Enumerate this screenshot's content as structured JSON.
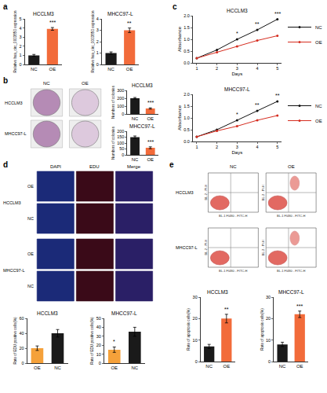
{
  "chart_data": [
    {
      "type": "bar",
      "title": "HCCLM3",
      "categories": [
        "NC",
        "OE"
      ],
      "values": [
        1.0,
        3.9
      ],
      "errors": [
        0.1,
        0.15
      ],
      "colors": [
        "#1a1a1a",
        "#f26b3a"
      ],
      "y_label": "Relative hsa_circ_0003850 expression",
      "ylim": [
        0,
        5
      ],
      "yticks": [
        0,
        1,
        2,
        3,
        4,
        5
      ],
      "grid": false,
      "annotations": [
        {
          "category": "OE",
          "text": "***"
        }
      ]
    },
    {
      "type": "bar",
      "title": "MHCC97-L",
      "categories": [
        "NC",
        "OE"
      ],
      "values": [
        1.0,
        3.0
      ],
      "errors": [
        0.1,
        0.2
      ],
      "colors": [
        "#1a1a1a",
        "#f26b3a"
      ],
      "y_label": "Relative hsa_circ_0003850 expression",
      "ylim": [
        0,
        4
      ],
      "yticks": [
        0,
        1,
        2,
        3,
        4
      ],
      "grid": false,
      "annotations": [
        {
          "category": "OE",
          "text": "**"
        }
      ]
    },
    {
      "type": "bar",
      "title": "HCCLM3",
      "categories": [
        "NC",
        "OE"
      ],
      "values": [
        200,
        70
      ],
      "errors": [
        10,
        8
      ],
      "colors": [
        "#1a1a1a",
        "#f26b3a"
      ],
      "y_label": "Numbers of colonies",
      "ylim": [
        0,
        300
      ],
      "yticks": [
        0,
        100,
        200,
        300
      ],
      "grid": false,
      "annotations": [
        {
          "category": "OE",
          "text": "***"
        }
      ]
    },
    {
      "type": "bar",
      "title": "MHCC97-L",
      "categories": [
        "NC",
        "OE"
      ],
      "values": [
        150,
        60
      ],
      "errors": [
        10,
        8
      ],
      "colors": [
        "#1a1a1a",
        "#f26b3a"
      ],
      "y_label": "Numbers of colonies",
      "ylim": [
        0,
        200
      ],
      "yticks": [
        0,
        50,
        100,
        150,
        200
      ],
      "grid": false,
      "annotations": [
        {
          "category": "OE",
          "text": "***"
        }
      ]
    },
    {
      "type": "line",
      "title": "HCCLM3",
      "x": [
        1,
        2,
        3,
        4,
        5
      ],
      "x_label": "Days",
      "y_label": "Absorbance",
      "series": [
        {
          "name": "NC",
          "color": "#111111",
          "values": [
            0.2,
            0.55,
            1.0,
            1.4,
            1.85
          ]
        },
        {
          "name": "OE",
          "color": "#d62d20",
          "values": [
            0.2,
            0.45,
            0.7,
            0.95,
            1.15
          ]
        }
      ],
      "xlim": [
        0.8,
        5.2
      ],
      "xticks": [
        1,
        2,
        3,
        4,
        5
      ],
      "ylim": [
        0,
        2
      ],
      "yticks": [
        {
          "value": 0,
          "label": "0.0"
        },
        0.5,
        {
          "value": 1,
          "label": "1.0"
        },
        1.5,
        {
          "value": 2,
          "label": "2.0"
        }
      ],
      "grid": false,
      "legend": "right",
      "marker": "circle",
      "line_style": "solid",
      "annotations": [
        {
          "x": 3,
          "text": "*"
        },
        {
          "x": 4,
          "text": "**"
        },
        {
          "x": 5,
          "text": "***"
        }
      ]
    },
    {
      "type": "line",
      "title": "MHCC97-L",
      "x": [
        1,
        2,
        3,
        4,
        5
      ],
      "x_label": "Days",
      "y_label": "Absorbance",
      "series": [
        {
          "name": "NC",
          "color": "#111111",
          "values": [
            0.2,
            0.5,
            0.9,
            1.3,
            1.7
          ]
        },
        {
          "name": "OE",
          "color": "#d62d20",
          "values": [
            0.2,
            0.45,
            0.65,
            0.9,
            1.1
          ]
        }
      ],
      "xlim": [
        0.8,
        5.2
      ],
      "xticks": [
        1,
        2,
        3,
        4,
        5
      ],
      "ylim": [
        0,
        2
      ],
      "yticks": [
        {
          "value": 0,
          "label": "0.0"
        },
        0.5,
        {
          "value": 1,
          "label": "1.0"
        },
        1.5,
        {
          "value": 2,
          "label": "2.0"
        }
      ],
      "grid": false,
      "legend": "right",
      "marker": "circle",
      "line_style": "solid",
      "annotations": [
        {
          "x": 3,
          "text": "*"
        },
        {
          "x": 4,
          "text": "**"
        },
        {
          "x": 5,
          "text": "**"
        }
      ]
    },
    {
      "type": "bar",
      "title": "HCCLM3",
      "categories": [
        "OE",
        "NC"
      ],
      "values": [
        20,
        40
      ],
      "errors": [
        3,
        5
      ],
      "colors": [
        "#f5a13a",
        "#1a1a1a"
      ],
      "y_label": "Rate of EDU positive cells(%)",
      "ylim": [
        0,
        60
      ],
      "yticks": [
        0,
        20,
        40,
        60
      ],
      "grid": false,
      "annotations": []
    },
    {
      "type": "bar",
      "title": "MHCC97-L",
      "categories": [
        "OE",
        "NC"
      ],
      "values": [
        15,
        35
      ],
      "errors": [
        3,
        5
      ],
      "colors": [
        "#f5a13a",
        "#1a1a1a"
      ],
      "y_label": "Rate of EDU positive cells(%)",
      "ylim": [
        0,
        50
      ],
      "yticks": [
        0,
        10,
        20,
        30,
        40,
        50
      ],
      "grid": false,
      "annotations": [
        {
          "category": "OE",
          "text": "*"
        }
      ]
    },
    {
      "type": "bar",
      "title": "HCCLM3",
      "categories": [
        "NC",
        "OE"
      ],
      "values": [
        7,
        20
      ],
      "errors": [
        1,
        2
      ],
      "colors": [
        "#1a1a1a",
        "#f26b3a"
      ],
      "y_label": "Rate of apoptosis cells(%)",
      "ylim": [
        0,
        30
      ],
      "yticks": [
        0,
        10,
        20,
        30
      ],
      "grid": false,
      "annotations": [
        {
          "category": "OE",
          "text": "**"
        }
      ]
    },
    {
      "type": "bar",
      "title": "MHCC97-L",
      "categories": [
        "NC",
        "OE"
      ],
      "values": [
        8,
        22
      ],
      "errors": [
        1,
        1.5
      ],
      "colors": [
        "#1a1a1a",
        "#f26b3a"
      ],
      "y_label": "Rate of apoptosis cells(%)",
      "ylim": [
        0,
        30
      ],
      "yticks": [
        0,
        10,
        20,
        30
      ],
      "grid": false,
      "annotations": [
        {
          "category": "OE",
          "text": "***"
        }
      ]
    }
  ],
  "figure": {
    "panel_labels": [
      "a",
      "b",
      "c",
      "d",
      "e"
    ],
    "colony_images": {
      "columns": [
        "NC",
        "OE"
      ],
      "rows": [
        "HCCLM3",
        "MHCC97-L"
      ]
    },
    "edu_images": {
      "columns": [
        "DAPI",
        "EDU",
        "Merge"
      ],
      "groups": [
        {
          "name": "HCCLM3",
          "rows": [
            "OE",
            "NC"
          ]
        },
        {
          "name": "MHCC97-L",
          "rows": [
            "OE",
            "NC"
          ]
        }
      ]
    },
    "flow_plots": {
      "columns": [
        "NC",
        "OE"
      ],
      "rows": [
        "HCCLM3",
        "MHCC97-L"
      ],
      "x_label": "BL-1 FI480 - FITC-H",
      "y_label": "BL-2 - PI-H"
    }
  }
}
